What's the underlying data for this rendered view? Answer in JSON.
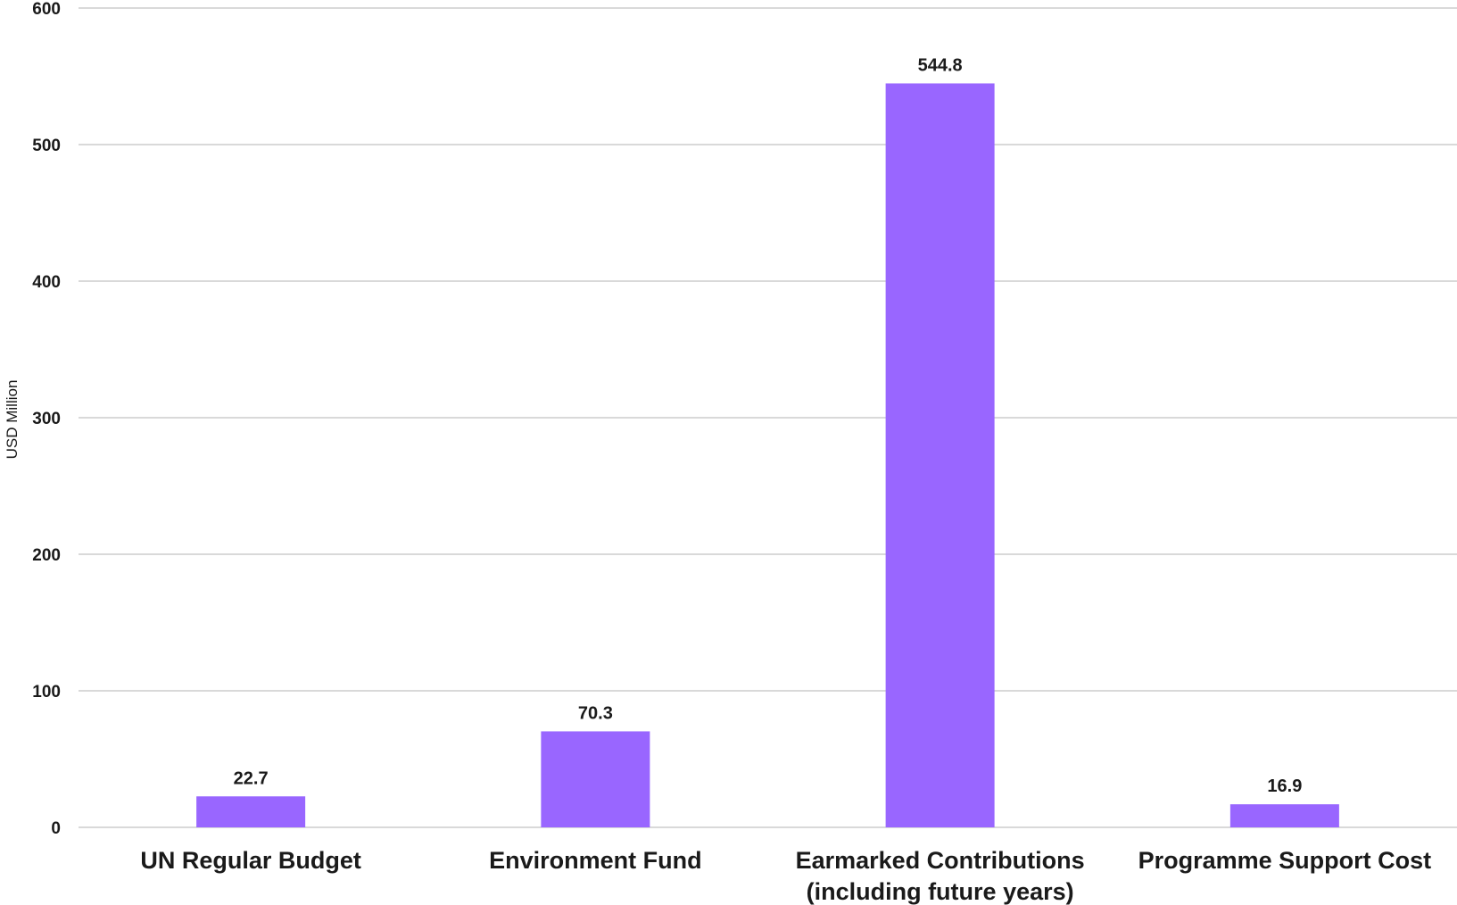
{
  "chart_data": {
    "type": "bar",
    "categories": [
      [
        "UN Regular Budget"
      ],
      [
        "Environment Fund"
      ],
      [
        "Earmarked Contributions",
        "(including future years)"
      ],
      [
        "Programme Support Cost"
      ]
    ],
    "values": [
      22.7,
      70.3,
      544.8,
      16.9
    ],
    "data_labels": [
      "22.7",
      "70.3",
      "544.8",
      "16.9"
    ],
    "ylabel": "USD Million",
    "ylim": [
      0,
      600
    ],
    "yticks": [
      0,
      100,
      200,
      300,
      400,
      500,
      600
    ],
    "grid": true,
    "legend": "none",
    "bar_color": "#9966ff"
  }
}
